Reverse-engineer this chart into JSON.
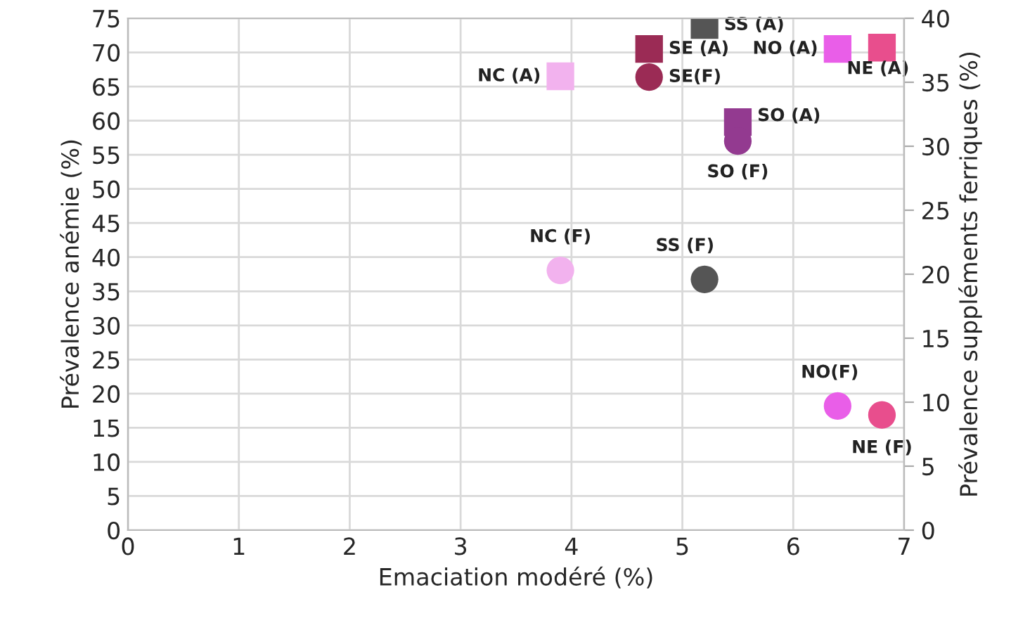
{
  "chart_data": {
    "type": "scatter",
    "xlabel": "Emaciation modéré (%)",
    "ylabel": "Prévalence anémie (%)",
    "y2label": "Prévalence suppléments ferriques (%)",
    "xlim": [
      0,
      7
    ],
    "xticks": [
      0,
      1,
      2,
      3,
      4,
      5,
      6,
      7
    ],
    "ylim": [
      0,
      75
    ],
    "yticks": [
      0,
      5,
      10,
      15,
      20,
      25,
      30,
      35,
      40,
      45,
      50,
      55,
      60,
      65,
      70,
      75
    ],
    "y2lim": [
      0,
      40
    ],
    "y2ticks": [
      0,
      5,
      10,
      15,
      20,
      25,
      30,
      35,
      40
    ],
    "grid": true,
    "legend": false,
    "series": [
      {
        "name": "SS (A)",
        "color": "#555555",
        "marker": "square",
        "x": [
          5.2
        ],
        "values": [
          74
        ]
      },
      {
        "name": "SE (A)",
        "color": "#9b2b55",
        "marker": "square",
        "x": [
          4.7
        ],
        "values": [
          70.5
        ]
      },
      {
        "name": "NC (A)",
        "color": "#f2b2ee",
        "marker": "square",
        "x": [
          3.9
        ],
        "values": [
          66.5
        ]
      },
      {
        "name": "NO (A)",
        "color": "#e95ee8",
        "marker": "square",
        "x": [
          6.4
        ],
        "values": [
          70.5
        ]
      },
      {
        "name": "NE (A)",
        "color": "#e84e8d",
        "marker": "square",
        "x": [
          6.8
        ],
        "values": [
          70.7
        ]
      },
      {
        "name": "SO (A)",
        "color": "#933a90",
        "marker": "square",
        "x": [
          5.5
        ],
        "values": [
          59.8
        ]
      },
      {
        "name": "SE(F)",
        "color": "#9b2b55",
        "marker": "circle",
        "axis": "y2",
        "x": [
          4.7
        ],
        "values": [
          35.4
        ]
      },
      {
        "name": "SO (F)",
        "color": "#933a90",
        "marker": "circle",
        "axis": "y2",
        "x": [
          5.5
        ],
        "values": [
          30.4
        ]
      },
      {
        "name": "NC (F)",
        "color": "#f2b2ee",
        "marker": "circle",
        "axis": "y2",
        "x": [
          3.9
        ],
        "values": [
          20.3
        ]
      },
      {
        "name": "SS (F)",
        "color": "#555555",
        "marker": "circle",
        "axis": "y2",
        "x": [
          5.2
        ],
        "values": [
          19.6
        ]
      },
      {
        "name": "NO(F)",
        "color": "#e95ee8",
        "marker": "circle",
        "axis": "y2",
        "x": [
          6.4
        ],
        "values": [
          9.7
        ]
      },
      {
        "name": "NE (F)",
        "color": "#e84e8d",
        "marker": "circle",
        "axis": "y2",
        "x": [
          6.8
        ],
        "values": [
          9.0
        ]
      }
    ]
  }
}
